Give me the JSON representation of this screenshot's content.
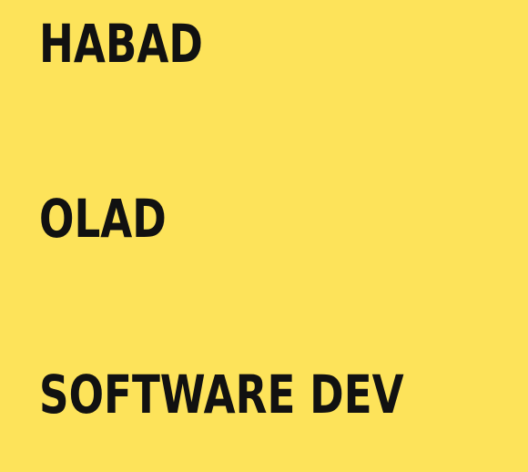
{
  "lines": [
    "HABAD",
    "OLAD",
    "SOFTWARE DEV"
  ],
  "colors": {
    "background": "#FDE35A",
    "text": "#111111"
  }
}
